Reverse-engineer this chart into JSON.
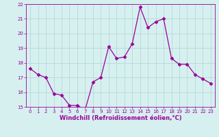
{
  "x": [
    0,
    1,
    2,
    3,
    4,
    5,
    6,
    7,
    8,
    9,
    10,
    11,
    12,
    13,
    14,
    15,
    16,
    17,
    18,
    19,
    20,
    21,
    22,
    23
  ],
  "y": [
    17.6,
    17.2,
    17.0,
    15.9,
    15.8,
    15.1,
    15.1,
    14.8,
    16.7,
    17.0,
    19.1,
    18.3,
    18.4,
    19.3,
    21.8,
    20.4,
    20.8,
    21.0,
    18.3,
    17.9,
    17.9,
    17.2,
    16.9,
    16.6
  ],
  "line_color": "#990099",
  "marker": "D",
  "markersize": 2.5,
  "linewidth": 0.9,
  "background_color": "#d6f0f0",
  "grid_color": "#b8d8d8",
  "xlabel": "Windchill (Refroidissement éolien,°C)",
  "ylim": [
    15,
    22
  ],
  "xlim_min": -0.5,
  "xlim_max": 23.5,
  "yticks": [
    15,
    16,
    17,
    18,
    19,
    20,
    21,
    22
  ],
  "xticks": [
    0,
    1,
    2,
    3,
    4,
    5,
    6,
    7,
    8,
    9,
    10,
    11,
    12,
    13,
    14,
    15,
    16,
    17,
    18,
    19,
    20,
    21,
    22,
    23
  ],
  "tick_color": "#990099",
  "label_color": "#990099",
  "tick_fontsize": 5.0,
  "xlabel_fontsize": 6.0
}
